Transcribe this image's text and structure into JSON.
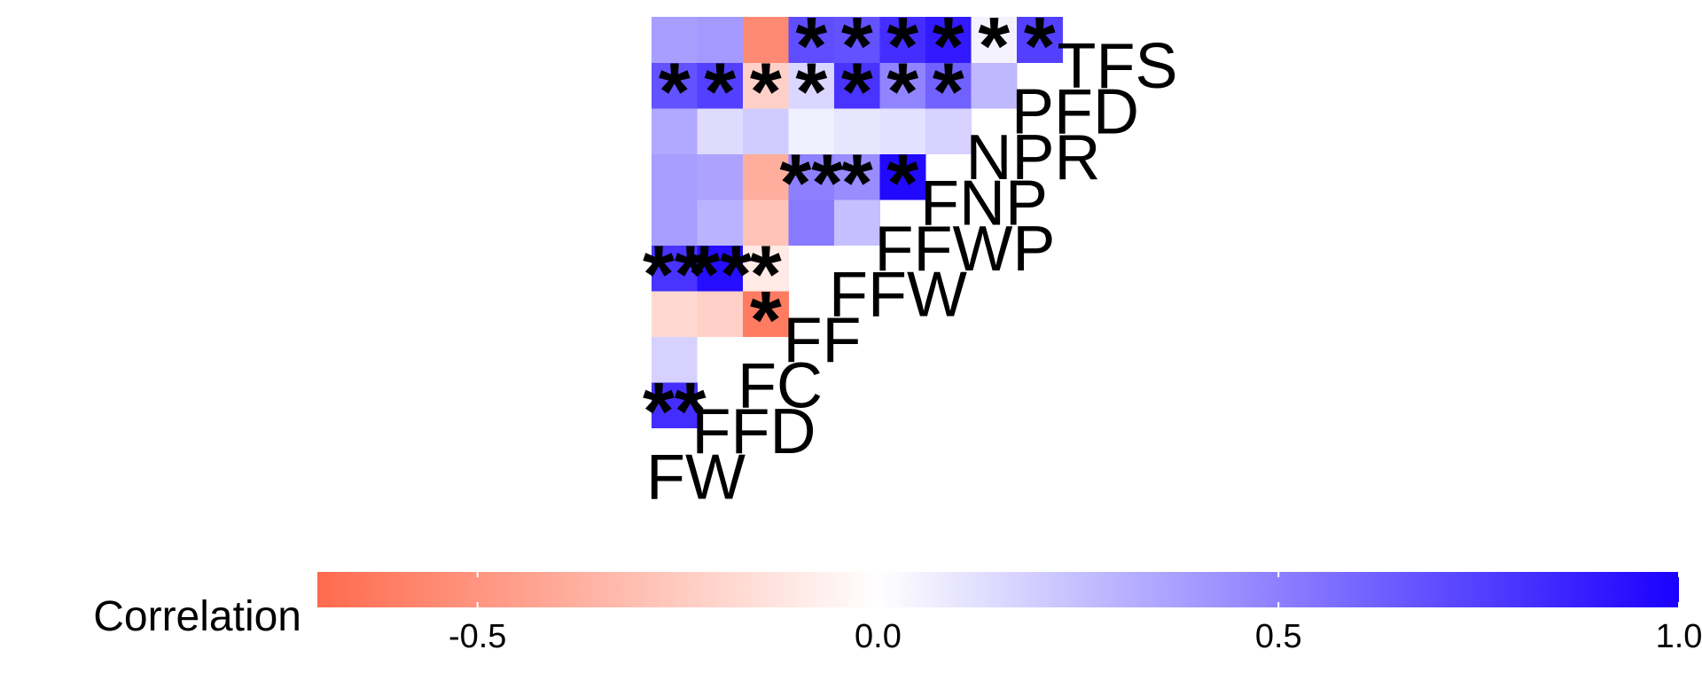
{
  "chart_data": {
    "type": "heatmap",
    "title": "",
    "variables": [
      "FW",
      "FFD",
      "FC",
      "FF",
      "FFW",
      "FFWP",
      "FNP",
      "NPR",
      "PFD",
      "TFS"
    ],
    "cells": [
      {
        "row": "FFD",
        "col": "FW",
        "value": 0.82,
        "sig": "**"
      },
      {
        "row": "FC",
        "col": "FW",
        "value": 0.18,
        "sig": ""
      },
      {
        "row": "FC",
        "col": "FFD",
        "value": 0.0,
        "sig": ""
      },
      {
        "row": "FF",
        "col": "FW",
        "value": -0.18,
        "sig": ""
      },
      {
        "row": "FF",
        "col": "FFD",
        "value": -0.22,
        "sig": ""
      },
      {
        "row": "FF",
        "col": "FC",
        "value": -0.62,
        "sig": "*"
      },
      {
        "row": "FFW",
        "col": "FW",
        "value": 0.8,
        "sig": "**"
      },
      {
        "row": "FFW",
        "col": "FFD",
        "value": 0.95,
        "sig": "**"
      },
      {
        "row": "FFW",
        "col": "FC",
        "value": -0.1,
        "sig": "*"
      },
      {
        "row": "FFWP",
        "col": "FW",
        "value": 0.38,
        "sig": ""
      },
      {
        "row": "FFWP",
        "col": "FFD",
        "value": 0.3,
        "sig": ""
      },
      {
        "row": "FFWP",
        "col": "FC",
        "value": -0.28,
        "sig": ""
      },
      {
        "row": "FFWP",
        "col": "FF",
        "value": 0.52,
        "sig": ""
      },
      {
        "row": "FFWP",
        "col": "FFW",
        "value": 0.25,
        "sig": ""
      },
      {
        "row": "FNP",
        "col": "FW",
        "value": 0.38,
        "sig": ""
      },
      {
        "row": "FNP",
        "col": "FFD",
        "value": 0.36,
        "sig": ""
      },
      {
        "row": "FNP",
        "col": "FC",
        "value": -0.38,
        "sig": ""
      },
      {
        "row": "FNP",
        "col": "FF",
        "value": 0.5,
        "sig": "**"
      },
      {
        "row": "FNP",
        "col": "FFW",
        "value": 0.45,
        "sig": "*"
      },
      {
        "row": "FNP",
        "col": "FFWP",
        "value": 0.97,
        "sig": "*"
      },
      {
        "row": "NPR",
        "col": "FW",
        "value": 0.34,
        "sig": ""
      },
      {
        "row": "NPR",
        "col": "FFD",
        "value": 0.14,
        "sig": ""
      },
      {
        "row": "NPR",
        "col": "FC",
        "value": 0.2,
        "sig": ""
      },
      {
        "row": "NPR",
        "col": "FF",
        "value": 0.06,
        "sig": ""
      },
      {
        "row": "NPR",
        "col": "FFW",
        "value": 0.1,
        "sig": ""
      },
      {
        "row": "NPR",
        "col": "FFWP",
        "value": 0.12,
        "sig": ""
      },
      {
        "row": "NPR",
        "col": "FNP",
        "value": 0.18,
        "sig": ""
      },
      {
        "row": "PFD",
        "col": "FW",
        "value": 0.68,
        "sig": "*"
      },
      {
        "row": "PFD",
        "col": "FFD",
        "value": 0.75,
        "sig": "*"
      },
      {
        "row": "PFD",
        "col": "FC",
        "value": -0.22,
        "sig": "*"
      },
      {
        "row": "PFD",
        "col": "FF",
        "value": 0.16,
        "sig": "*"
      },
      {
        "row": "PFD",
        "col": "FFW",
        "value": 0.8,
        "sig": "*"
      },
      {
        "row": "PFD",
        "col": "FFWP",
        "value": 0.48,
        "sig": "*"
      },
      {
        "row": "PFD",
        "col": "FNP",
        "value": 0.62,
        "sig": "*"
      },
      {
        "row": "PFD",
        "col": "NPR",
        "value": 0.28,
        "sig": ""
      },
      {
        "row": "TFS",
        "col": "FW",
        "value": 0.38,
        "sig": ""
      },
      {
        "row": "TFS",
        "col": "FFD",
        "value": 0.4,
        "sig": ""
      },
      {
        "row": "TFS",
        "col": "FC",
        "value": -0.55,
        "sig": ""
      },
      {
        "row": "TFS",
        "col": "FF",
        "value": 0.7,
        "sig": "*"
      },
      {
        "row": "TFS",
        "col": "FFW",
        "value": 0.68,
        "sig": "*"
      },
      {
        "row": "TFS",
        "col": "FFWP",
        "value": 0.82,
        "sig": "*"
      },
      {
        "row": "TFS",
        "col": "FNP",
        "value": 0.9,
        "sig": "*"
      },
      {
        "row": "TFS",
        "col": "NPR",
        "value": 0.05,
        "sig": "*"
      },
      {
        "row": "TFS",
        "col": "PFD",
        "value": 0.75,
        "sig": "*"
      }
    ],
    "legend": {
      "title": "Correlation",
      "position": "bottom",
      "range": [
        -0.7,
        1.0
      ],
      "ticks": [
        -0.5,
        0.0,
        0.5,
        1.0
      ],
      "tick_labels": [
        "-0.5",
        "0.0",
        "0.5",
        "1.0"
      ]
    },
    "colors": {
      "low": "#FF6A4D",
      "mid": "#FFFFFF",
      "high": "#1A00FF"
    }
  }
}
